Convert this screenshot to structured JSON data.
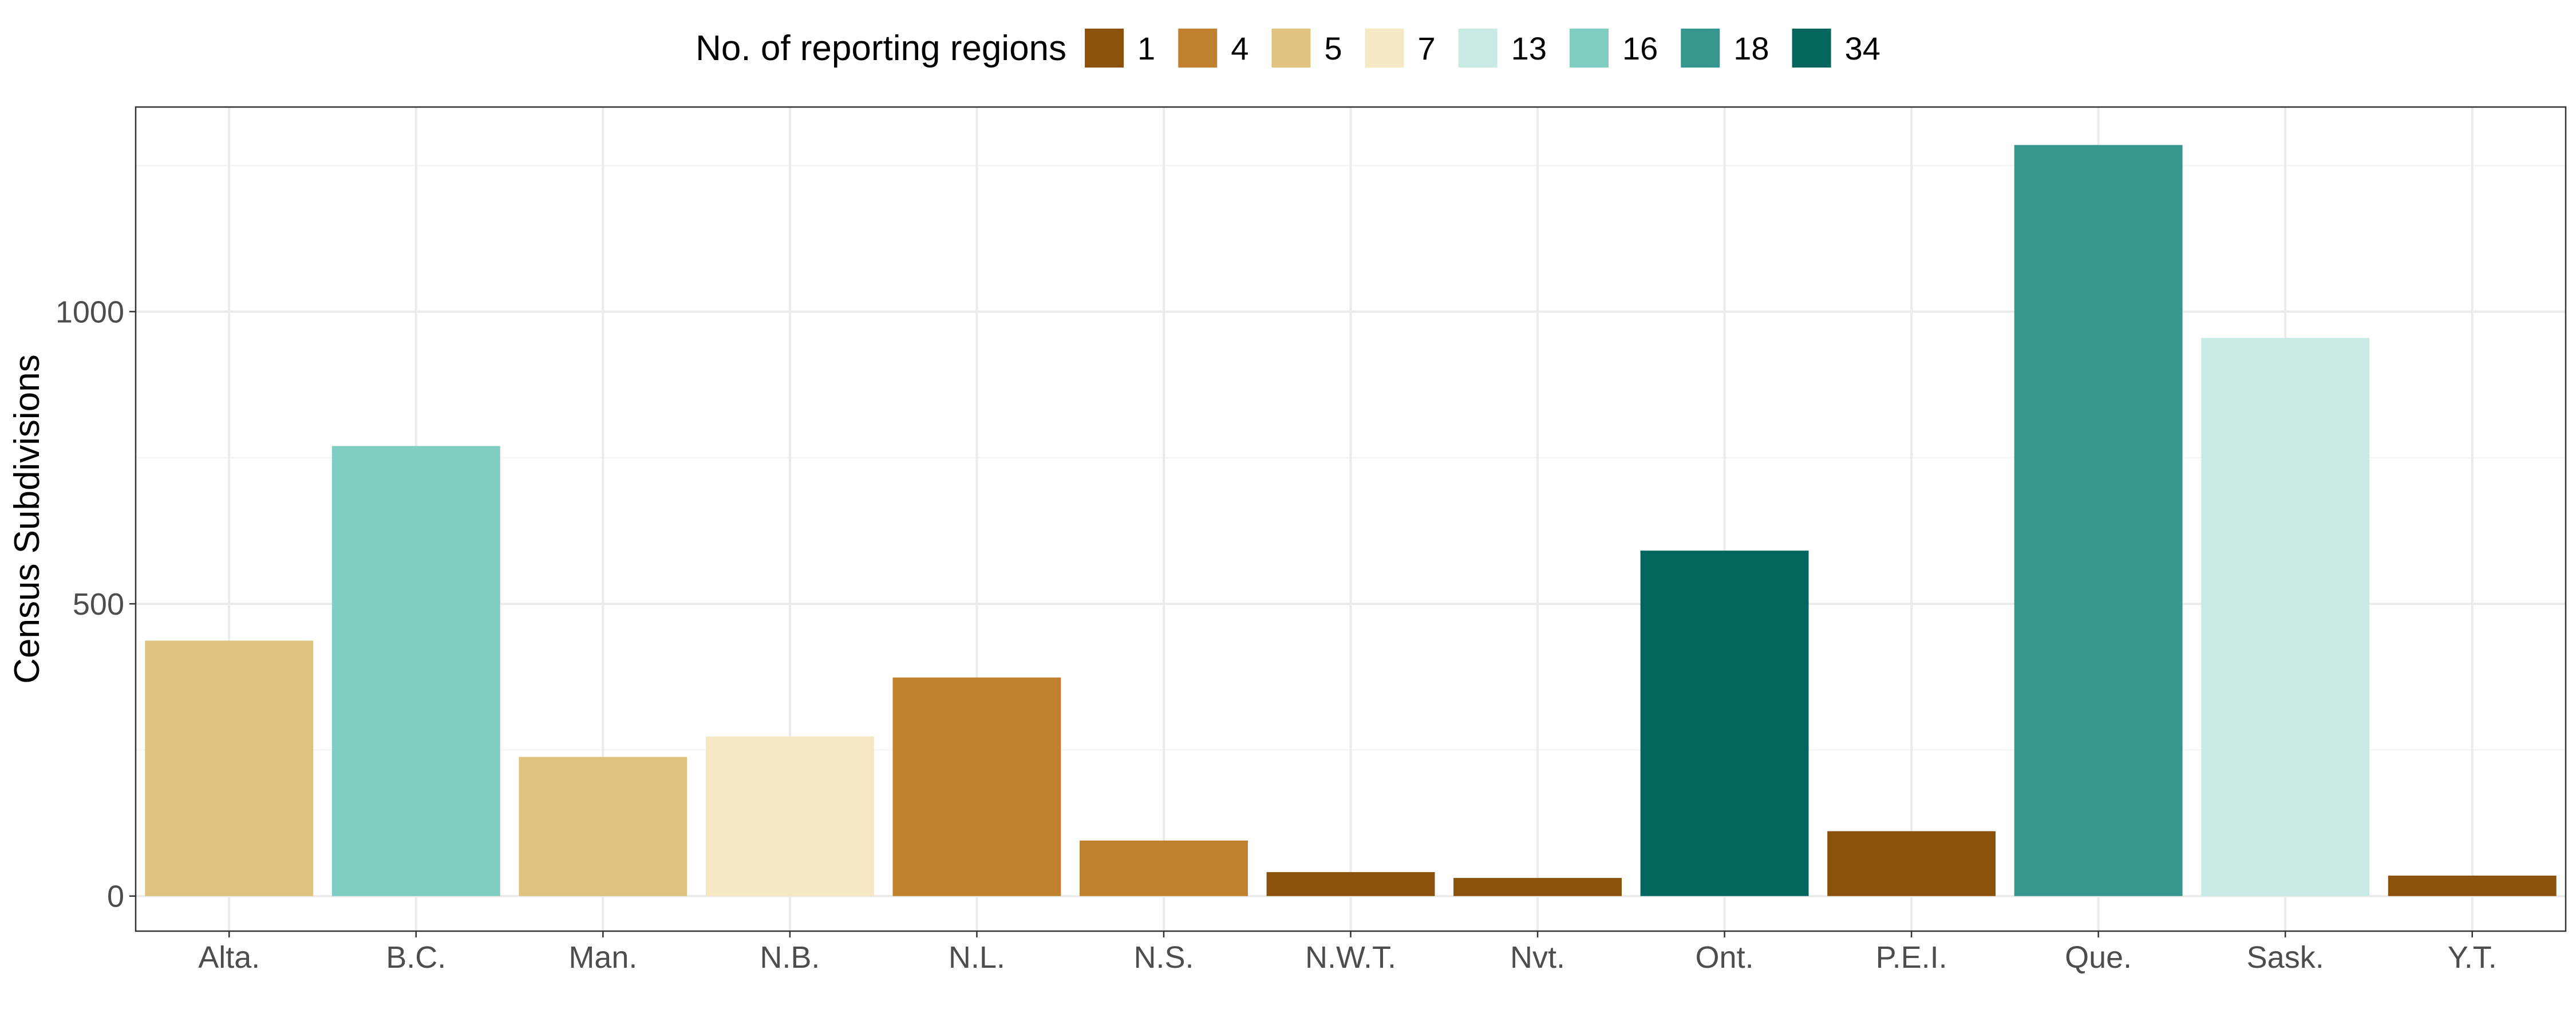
{
  "chart_data": {
    "type": "bar",
    "title": "",
    "xlabel": "",
    "ylabel": "Census Subdivisions",
    "categories": [
      "Alta.",
      "B.C.",
      "Man.",
      "N.B.",
      "N.L.",
      "N.S.",
      "N.W.T.",
      "Nvt.",
      "Ont.",
      "P.E.I.",
      "Que.",
      "Sask.",
      "Y.T."
    ],
    "values": [
      437,
      770,
      238,
      273,
      374,
      95,
      41,
      31,
      591,
      111,
      1285,
      955,
      35
    ],
    "fill_group": [
      "5",
      "16",
      "5",
      "7",
      "4",
      "4",
      "1",
      "1",
      "34",
      "1",
      "18",
      "13",
      "1"
    ],
    "ylim": [
      -60,
      1350
    ],
    "yticks": [
      0,
      500,
      1000
    ],
    "yticks_minor": [
      250,
      750,
      1250
    ],
    "grid": true,
    "legend": {
      "title": "No. of reporting regions",
      "position": "top",
      "entries": [
        {
          "label": "1",
          "color": "#8c510a"
        },
        {
          "label": "4",
          "color": "#bf812d"
        },
        {
          "label": "5",
          "color": "#dfc27d"
        },
        {
          "label": "7",
          "color": "#f6e8c3"
        },
        {
          "label": "13",
          "color": "#c7eae5"
        },
        {
          "label": "16",
          "color": "#80cdc1"
        },
        {
          "label": "18",
          "color": "#35978f"
        },
        {
          "label": "34",
          "color": "#01665e"
        }
      ]
    }
  }
}
